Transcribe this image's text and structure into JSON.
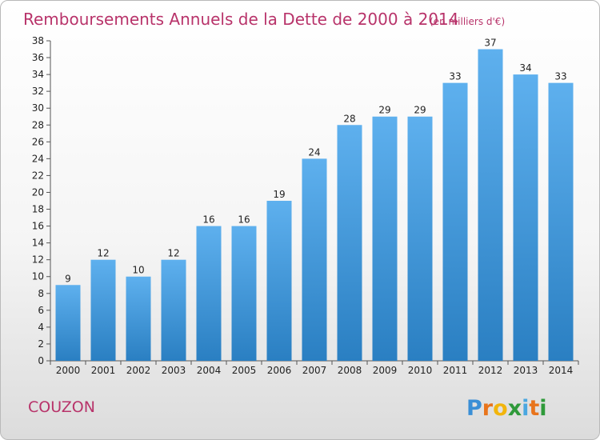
{
  "header": {
    "title": "Remboursements Annuels de la Dette de 2000 à 2014",
    "unit": "(en milliers d'€)"
  },
  "commune": "COUZON",
  "logo": {
    "text": "Proxiti",
    "letters": [
      "P",
      "r",
      "o",
      "x",
      "i",
      "t",
      "i"
    ],
    "colors": [
      "#3a8fd6",
      "#e8741c",
      "#f2b50c",
      "#2f9a3a",
      "#4aa7e0",
      "#e8741c",
      "#2f9a3a"
    ]
  },
  "colors": {
    "bar_top": "#5eb0ee",
    "bar_bottom": "#2a7fc2",
    "title": "#b8336a"
  },
  "chart_data": {
    "type": "bar",
    "title": "Remboursements Annuels de la Dette de 2000 à 2014",
    "subtitle": "(en milliers d'€)",
    "xlabel": "",
    "ylabel": "",
    "categories": [
      "2000",
      "2001",
      "2002",
      "2003",
      "2004",
      "2005",
      "2006",
      "2007",
      "2008",
      "2009",
      "2010",
      "2011",
      "2012",
      "2013",
      "2014"
    ],
    "values": [
      9,
      12,
      10,
      12,
      16,
      16,
      19,
      24,
      28,
      29,
      29,
      33,
      37,
      34,
      33
    ],
    "ylim": [
      0,
      38
    ],
    "yticks": [
      0,
      2,
      4,
      6,
      8,
      10,
      12,
      14,
      16,
      18,
      20,
      22,
      24,
      26,
      28,
      30,
      32,
      34,
      36,
      38
    ],
    "grid": false,
    "legend": "none"
  }
}
